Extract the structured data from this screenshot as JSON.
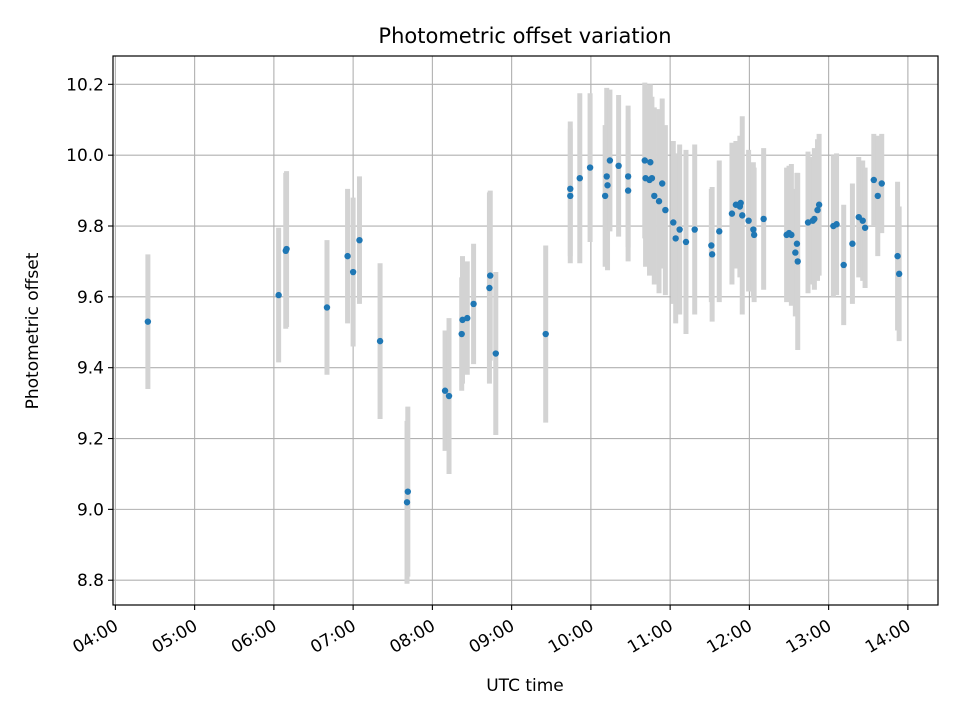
{
  "chart_data": {
    "type": "scatter",
    "title": "Photometric offset variation",
    "xlabel": "UTC time",
    "ylabel": "Photometric offset",
    "x_unit": "UTC hours",
    "xlim": [
      3.97,
      14.38
    ],
    "ylim": [
      8.73,
      10.28
    ],
    "x_ticks": [
      4,
      5,
      6,
      7,
      8,
      9,
      10,
      11,
      12,
      13,
      14
    ],
    "x_tick_labels": [
      "04:00",
      "05:00",
      "06:00",
      "07:00",
      "08:00",
      "09:00",
      "10:00",
      "11:00",
      "12:00",
      "13:00",
      "14:00"
    ],
    "y_ticks": [
      8.8,
      9.0,
      9.2,
      9.4,
      9.6,
      9.8,
      10.0,
      10.2
    ],
    "y_tick_labels": [
      "8.8",
      "9.0",
      "9.2",
      "9.4",
      "9.6",
      "9.8",
      "10.0",
      "10.2"
    ],
    "grid": true,
    "colors": {
      "point": "#1f77b4",
      "errorbar": "#d3d3d3",
      "grid": "#b0b0b0",
      "axes": "#000000"
    },
    "series": [
      {
        "x": [
          4.41,
          6.06,
          6.15,
          6.16,
          6.67,
          6.93,
          7.0,
          7.08,
          7.34,
          7.68,
          7.69,
          8.16,
          8.21,
          8.37,
          8.38,
          8.44,
          8.52,
          8.72,
          8.73,
          8.8,
          9.43,
          9.74,
          9.74,
          9.86,
          9.99,
          10.18,
          10.2,
          10.21,
          10.24,
          10.35,
          10.47,
          10.47,
          10.68,
          10.69,
          10.74,
          10.75,
          10.77,
          10.8,
          10.86,
          10.9,
          10.94,
          11.04,
          11.07,
          11.12,
          11.2,
          11.31,
          11.52,
          11.53,
          11.62,
          11.78,
          11.83,
          11.88,
          11.89,
          11.91,
          11.99,
          12.05,
          12.06,
          12.18,
          12.47,
          12.5,
          12.53,
          12.58,
          12.6,
          12.61,
          12.74,
          12.8,
          12.82,
          12.86,
          12.88,
          13.06,
          13.1,
          13.19,
          13.3,
          13.38,
          13.43,
          13.46,
          13.57,
          13.62,
          13.67,
          13.87,
          13.89
        ],
        "y": [
          9.53,
          9.605,
          9.73,
          9.735,
          9.57,
          9.715,
          9.67,
          9.76,
          9.475,
          9.02,
          9.05,
          9.335,
          9.32,
          9.495,
          9.535,
          9.54,
          9.58,
          9.625,
          9.66,
          9.44,
          9.495,
          9.885,
          9.905,
          9.935,
          9.965,
          9.885,
          9.94,
          9.915,
          9.985,
          9.97,
          9.9,
          9.94,
          9.985,
          9.935,
          9.93,
          9.98,
          9.935,
          9.885,
          9.87,
          9.92,
          9.845,
          9.81,
          9.765,
          9.79,
          9.755,
          9.79,
          9.745,
          9.72,
          9.785,
          9.835,
          9.86,
          9.855,
          9.865,
          9.83,
          9.815,
          9.79,
          9.775,
          9.82,
          9.775,
          9.78,
          9.775,
          9.725,
          9.75,
          9.7,
          9.81,
          9.815,
          9.82,
          9.845,
          9.86,
          9.8,
          9.805,
          9.69,
          9.75,
          9.825,
          9.815,
          9.795,
          9.93,
          9.885,
          9.92,
          9.715,
          9.665
        ],
        "err": [
          0.19,
          0.19,
          0.22,
          0.22,
          0.19,
          0.19,
          0.21,
          0.18,
          0.22,
          0.23,
          0.24,
          0.17,
          0.22,
          0.16,
          0.18,
          0.16,
          0.17,
          0.27,
          0.24,
          0.23,
          0.25,
          0.19,
          0.19,
          0.24,
          0.21,
          0.2,
          0.25,
          0.24,
          0.2,
          0.2,
          0.2,
          0.2,
          0.22,
          0.25,
          0.27,
          0.22,
          0.23,
          0.25,
          0.26,
          0.24,
          0.24,
          0.23,
          0.24,
          0.24,
          0.26,
          0.24,
          0.16,
          0.19,
          0.2,
          0.2,
          0.18,
          0.2,
          0.18,
          0.28,
          0.2,
          0.19,
          0.19,
          0.2,
          0.19,
          0.19,
          0.2,
          0.18,
          0.2,
          0.25,
          0.2,
          0.18,
          0.2,
          0.2,
          0.2,
          0.2,
          0.2,
          0.17,
          0.17,
          0.17,
          0.17,
          0.17,
          0.13,
          0.17,
          0.14,
          0.21,
          0.19
        ]
      }
    ]
  }
}
